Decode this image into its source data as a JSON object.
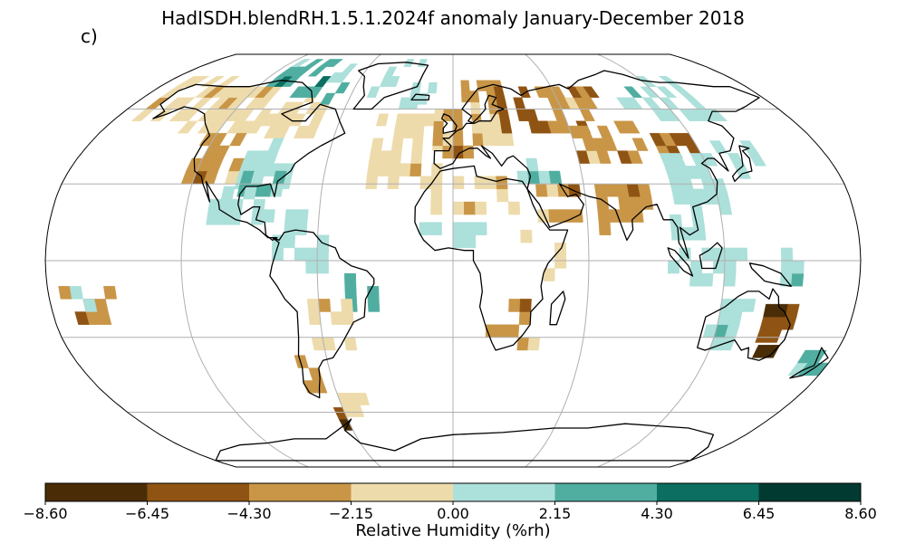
{
  "title": "HadISDH.blendRH.1.5.1.2024f anomaly January-December 2018",
  "panel_label": "c)",
  "colorbar": {
    "label": "Relative Humidity (%rh)",
    "ticks": [
      "−8.60",
      "−6.45",
      "−4.30",
      "−2.15",
      "0.00",
      "2.15",
      "4.30",
      "6.45",
      "8.60"
    ],
    "bins": [
      {
        "range": [
          -8.6,
          -6.45
        ],
        "color": "#4a2d06"
      },
      {
        "range": [
          -6.45,
          -4.3
        ],
        "color": "#8f5413"
      },
      {
        "range": [
          -4.3,
          -2.15
        ],
        "color": "#c99647"
      },
      {
        "range": [
          -2.15,
          0.0
        ],
        "color": "#eedbab"
      },
      {
        "range": [
          0.0,
          2.15
        ],
        "color": "#ace0da"
      },
      {
        "range": [
          2.15,
          4.3
        ],
        "color": "#50aea1"
      },
      {
        "range": [
          4.3,
          6.45
        ],
        "color": "#0b6e61"
      },
      {
        "range": [
          6.45,
          8.6
        ],
        "color": "#013a31"
      }
    ]
  },
  "map": {
    "projection": "Robinson",
    "gridlines": true,
    "coastlines": true,
    "anomaly_regions": [
      {
        "region": "Western North America",
        "class": -2
      },
      {
        "region": "Canada and Alaska",
        "class": -1
      },
      {
        "region": "Canadian Arctic",
        "class": 2
      },
      {
        "region": "Central and Eastern United States",
        "class": 1
      },
      {
        "region": "Gulf of Mexico coast",
        "class": 2
      },
      {
        "region": "Mexico and Central America",
        "class": 1
      },
      {
        "region": "Caribbean",
        "class": 1
      },
      {
        "region": "Greenland",
        "class": 1
      },
      {
        "region": "North Atlantic",
        "class": -1
      },
      {
        "region": "Iceland",
        "class": 1
      },
      {
        "region": "Western Europe",
        "class": -2
      },
      {
        "region": "Central and Eastern Europe",
        "class": -1
      },
      {
        "region": "Scandinavia",
        "class": -2
      },
      {
        "region": "Western Russia",
        "class": -3
      },
      {
        "region": "Central Siberia",
        "class": -2
      },
      {
        "region": "Eastern Siberia",
        "class": 1
      },
      {
        "region": "Central Asia",
        "class": -2
      },
      {
        "region": "Mongolia",
        "class": -3
      },
      {
        "region": "Eastern China",
        "class": 1
      },
      {
        "region": "Southern China",
        "class": 1
      },
      {
        "region": "Japan",
        "class": 1
      },
      {
        "region": "Middle East",
        "class": 2
      },
      {
        "region": "Arabian Peninsula",
        "class": -2
      },
      {
        "region": "India",
        "class": -2
      },
      {
        "region": "Southeast Asia",
        "class": 1
      },
      {
        "region": "Maritime Continent",
        "class": 1
      },
      {
        "region": "North Africa",
        "class": -1
      },
      {
        "region": "West Africa",
        "class": 1
      },
      {
        "region": "East Africa",
        "class": -1
      },
      {
        "region": "Southern Africa",
        "class": -2
      },
      {
        "region": "Northern South America",
        "class": 1
      },
      {
        "region": "Northeastern Brazil",
        "class": 2
      },
      {
        "region": "Central South America",
        "class": -1
      },
      {
        "region": "Patagonia",
        "class": -2
      },
      {
        "region": "Eastern Australia",
        "class": -3
      },
      {
        "region": "Southeastern Australia",
        "class": -4
      },
      {
        "region": "Western Australia",
        "class": 1
      },
      {
        "region": "New Zealand",
        "class": 2
      },
      {
        "region": "Central Pacific islands",
        "class": -2
      },
      {
        "region": "Antarctic Peninsula",
        "class": -4
      }
    ]
  }
}
